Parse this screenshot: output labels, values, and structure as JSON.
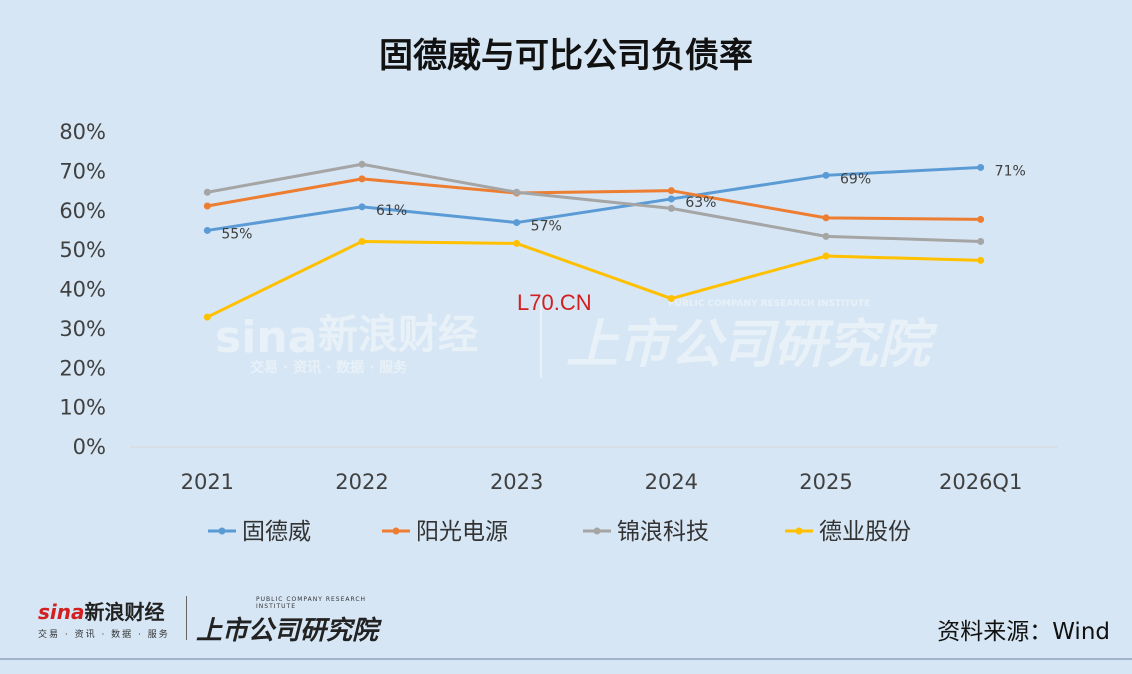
{
  "chart_data": {
    "type": "line",
    "title": "固德威与可比公司负债率",
    "categories": [
      "2021",
      "2022",
      "2023",
      "2024",
      "2025",
      "2026Q1"
    ],
    "yticks": [
      "0%",
      "10%",
      "20%",
      "30%",
      "40%",
      "50%",
      "60%",
      "70%",
      "80%"
    ],
    "ylim": [
      0,
      80
    ],
    "y_unit": "%",
    "grid": false,
    "legend_position": "bottom",
    "series": [
      {
        "name": "固德威",
        "color": "#5b9bd5",
        "values": [
          55,
          61,
          57,
          63,
          69,
          71
        ],
        "labels": [
          "55%",
          "61%",
          "57%",
          "63%",
          "69%",
          "71%"
        ]
      },
      {
        "name": "阳光电源",
        "color": "#ed7d31",
        "values": [
          61.2,
          68.1,
          64.5,
          65.1,
          58.2,
          57.8
        ]
      },
      {
        "name": "锦浪科技",
        "color": "#a5a5a5",
        "values": [
          64.7,
          71.8,
          64.7,
          60.6,
          53.5,
          52.2
        ]
      },
      {
        "name": "德业股份",
        "color": "#ffc000",
        "values": [
          33.0,
          52.2,
          51.7,
          37.7,
          48.5,
          47.4
        ]
      }
    ]
  },
  "watermark": {
    "url": "L70.CN",
    "sina_brand": "新浪财经",
    "sina_sub": "交易 · 资讯 · 数据 · 服务",
    "institute": "上市公司研究院",
    "institute_en": "PUBLIC COMPANY RESEARCH INSTITUTE"
  },
  "footer": {
    "sina_logo": "sina",
    "sina_brand": "新浪财经",
    "sina_sub": "交易 · 资讯 · 数据 · 服务",
    "institute_en": "PUBLIC COMPANY RESEARCH INSTITUTE",
    "institute": "上市公司研究院",
    "source": "资料来源：Wind"
  }
}
